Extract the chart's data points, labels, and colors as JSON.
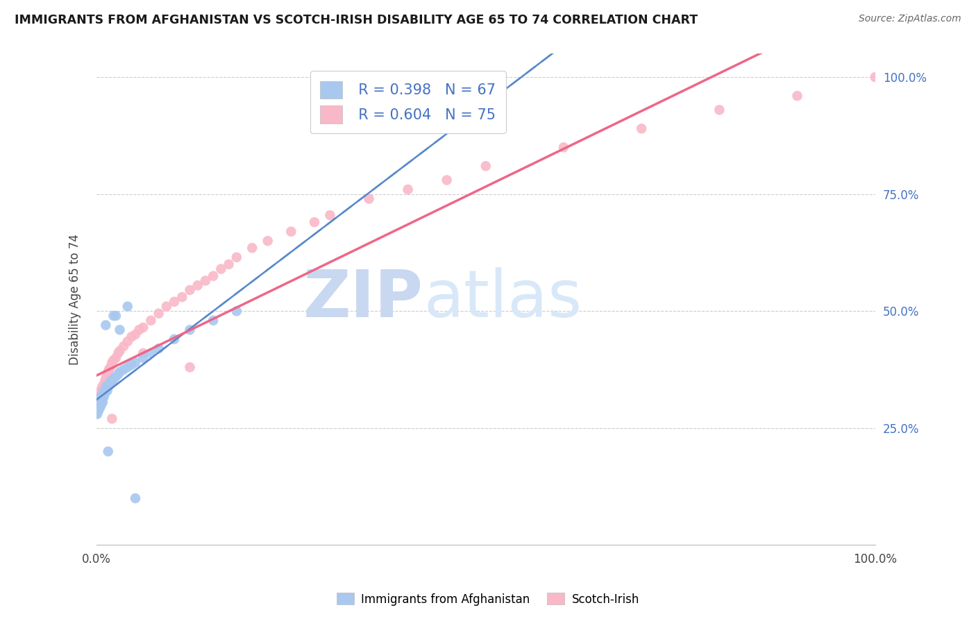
{
  "title": "IMMIGRANTS FROM AFGHANISTAN VS SCOTCH-IRISH DISABILITY AGE 65 TO 74 CORRELATION CHART",
  "source": "Source: ZipAtlas.com",
  "ylabel": "Disability Age 65 to 74",
  "afghanistan_color": "#a8c8f0",
  "scotch_irish_color": "#f9b8c8",
  "afghanistan_line_color": "#5588cc",
  "scotch_irish_line_color": "#ee6688",
  "diagonal_line_color": "#aabbd8",
  "r_afghanistan": 0.398,
  "n_afghanistan": 67,
  "r_scotch_irish": 0.604,
  "n_scotch_irish": 75,
  "watermark_zip": "ZIP",
  "watermark_atlas": "atlas",
  "watermark_color": "#c8d8f0",
  "afghanistan_scatter_x": [
    0.0,
    0.0,
    0.0,
    0.0,
    0.0,
    0.001,
    0.001,
    0.001,
    0.001,
    0.001,
    0.001,
    0.001,
    0.002,
    0.002,
    0.002,
    0.002,
    0.002,
    0.002,
    0.003,
    0.003,
    0.003,
    0.003,
    0.004,
    0.004,
    0.004,
    0.005,
    0.005,
    0.005,
    0.006,
    0.006,
    0.007,
    0.007,
    0.008,
    0.008,
    0.009,
    0.01,
    0.01,
    0.011,
    0.012,
    0.013,
    0.014,
    0.015,
    0.016,
    0.018,
    0.02,
    0.022,
    0.025,
    0.028,
    0.03,
    0.035,
    0.04,
    0.045,
    0.05,
    0.06,
    0.07,
    0.08,
    0.1,
    0.12,
    0.15,
    0.18,
    0.03,
    0.025,
    0.04,
    0.015,
    0.012,
    0.022,
    0.05
  ],
  "afghanistan_scatter_y": [
    0.29,
    0.3,
    0.295,
    0.285,
    0.28,
    0.3,
    0.29,
    0.285,
    0.295,
    0.305,
    0.31,
    0.28,
    0.3,
    0.295,
    0.305,
    0.29,
    0.31,
    0.285,
    0.305,
    0.295,
    0.315,
    0.288,
    0.3,
    0.31,
    0.295,
    0.305,
    0.295,
    0.315,
    0.3,
    0.31,
    0.31,
    0.32,
    0.305,
    0.32,
    0.315,
    0.32,
    0.33,
    0.325,
    0.33,
    0.34,
    0.33,
    0.34,
    0.34,
    0.35,
    0.35,
    0.355,
    0.36,
    0.365,
    0.37,
    0.375,
    0.38,
    0.385,
    0.39,
    0.4,
    0.41,
    0.42,
    0.44,
    0.46,
    0.48,
    0.5,
    0.46,
    0.49,
    0.51,
    0.2,
    0.47,
    0.49,
    0.1
  ],
  "scotch_irish_scatter_x": [
    0.0,
    0.0,
    0.0,
    0.0,
    0.001,
    0.001,
    0.001,
    0.001,
    0.002,
    0.002,
    0.002,
    0.002,
    0.003,
    0.003,
    0.003,
    0.004,
    0.004,
    0.004,
    0.005,
    0.005,
    0.006,
    0.006,
    0.007,
    0.007,
    0.008,
    0.008,
    0.009,
    0.01,
    0.011,
    0.012,
    0.013,
    0.014,
    0.015,
    0.016,
    0.018,
    0.02,
    0.022,
    0.025,
    0.028,
    0.03,
    0.035,
    0.04,
    0.045,
    0.05,
    0.055,
    0.06,
    0.07,
    0.08,
    0.09,
    0.1,
    0.11,
    0.12,
    0.13,
    0.14,
    0.15,
    0.16,
    0.17,
    0.18,
    0.2,
    0.22,
    0.25,
    0.28,
    0.3,
    0.35,
    0.4,
    0.45,
    0.5,
    0.6,
    0.7,
    0.8,
    0.9,
    1.0,
    0.02,
    0.06,
    0.12
  ],
  "scotch_irish_scatter_y": [
    0.29,
    0.3,
    0.31,
    0.285,
    0.295,
    0.305,
    0.29,
    0.31,
    0.3,
    0.295,
    0.315,
    0.29,
    0.305,
    0.295,
    0.31,
    0.3,
    0.32,
    0.295,
    0.31,
    0.325,
    0.315,
    0.33,
    0.325,
    0.335,
    0.33,
    0.34,
    0.335,
    0.34,
    0.35,
    0.355,
    0.36,
    0.365,
    0.37,
    0.375,
    0.38,
    0.39,
    0.395,
    0.4,
    0.41,
    0.415,
    0.425,
    0.435,
    0.445,
    0.45,
    0.46,
    0.465,
    0.48,
    0.495,
    0.51,
    0.52,
    0.53,
    0.545,
    0.555,
    0.565,
    0.575,
    0.59,
    0.6,
    0.615,
    0.635,
    0.65,
    0.67,
    0.69,
    0.705,
    0.74,
    0.76,
    0.78,
    0.81,
    0.85,
    0.89,
    0.93,
    0.96,
    1.0,
    0.27,
    0.41,
    0.38
  ],
  "xmin": 0.0,
  "xmax": 1.0,
  "ymin": 0.0,
  "ymax": 1.05
}
